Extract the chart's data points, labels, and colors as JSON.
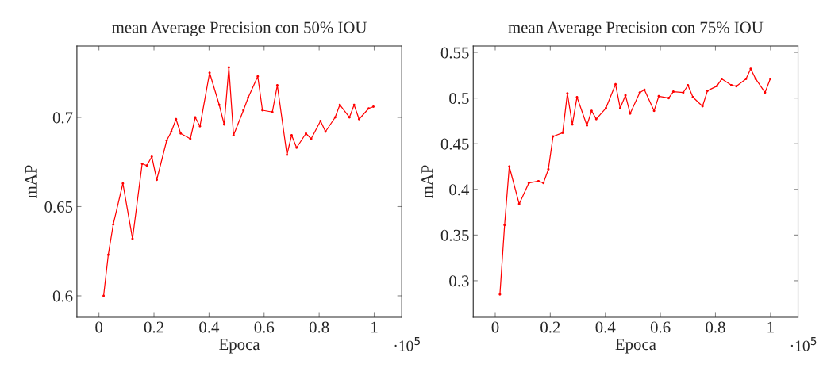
{
  "chart_data": [
    {
      "type": "line",
      "title": "mean Average Precision con 50% IOU",
      "xlabel": "Epoca",
      "ylabel": "mAP",
      "annotations": [
        "·10$^{5}$"
      ],
      "x": [
        0.017,
        0.034,
        0.052,
        0.087,
        0.122,
        0.157,
        0.174,
        0.192,
        0.21,
        0.246,
        0.263,
        0.28,
        0.297,
        0.332,
        0.35,
        0.367,
        0.402,
        0.437,
        0.455,
        0.472,
        0.489,
        0.525,
        0.542,
        0.577,
        0.594,
        0.63,
        0.648,
        0.683,
        0.7,
        0.718,
        0.752,
        0.771,
        0.805,
        0.823,
        0.858,
        0.875,
        0.91,
        0.927,
        0.945,
        0.98,
        0.997
      ],
      "series": [
        {
          "color": "#ff0000",
          "values": [
            0.6,
            0.623,
            0.64,
            0.663,
            0.632,
            0.674,
            0.673,
            0.678,
            0.665,
            0.687,
            0.692,
            0.699,
            0.691,
            0.688,
            0.7,
            0.695,
            0.725,
            0.707,
            0.696,
            0.728,
            0.69,
            0.704,
            0.711,
            0.723,
            0.704,
            0.703,
            0.718,
            0.679,
            0.69,
            0.683,
            0.691,
            0.688,
            0.698,
            0.692,
            0.7,
            0.707,
            0.7,
            0.707,
            0.699,
            0.705,
            0.706
          ]
        }
      ],
      "xlim": [
        -0.08,
        1.1
      ],
      "ylim": [
        0.588,
        0.74
      ],
      "xticks": [
        0,
        0.2,
        0.4,
        0.6,
        0.8,
        1
      ],
      "yticks": [
        0.6,
        0.65,
        0.7
      ],
      "marker": "circle",
      "line_style": "solid",
      "grid": false,
      "legend": false
    },
    {
      "type": "line",
      "title": "mean Average Precision con 75% IOU",
      "xlabel": "Epoca",
      "ylabel": "mAP",
      "annotations": [
        "·10$^{5}$"
      ],
      "x": [
        0.017,
        0.034,
        0.051,
        0.087,
        0.122,
        0.157,
        0.175,
        0.193,
        0.21,
        0.245,
        0.262,
        0.28,
        0.297,
        0.333,
        0.35,
        0.367,
        0.402,
        0.437,
        0.454,
        0.473,
        0.49,
        0.525,
        0.542,
        0.577,
        0.594,
        0.63,
        0.647,
        0.683,
        0.7,
        0.718,
        0.753,
        0.771,
        0.805,
        0.823,
        0.858,
        0.876,
        0.911,
        0.928,
        0.946,
        0.98,
        0.999
      ],
      "series": [
        {
          "color": "#ff0000",
          "values": [
            0.285,
            0.361,
            0.425,
            0.384,
            0.407,
            0.409,
            0.407,
            0.422,
            0.458,
            0.462,
            0.505,
            0.471,
            0.501,
            0.47,
            0.486,
            0.477,
            0.489,
            0.515,
            0.489,
            0.503,
            0.483,
            0.506,
            0.509,
            0.486,
            0.502,
            0.5,
            0.507,
            0.506,
            0.514,
            0.501,
            0.491,
            0.508,
            0.513,
            0.521,
            0.514,
            0.513,
            0.521,
            0.532,
            0.521,
            0.506,
            0.521
          ]
        }
      ],
      "xlim": [
        -0.08,
        1.1
      ],
      "ylim": [
        0.26,
        0.557
      ],
      "xticks": [
        0,
        0.2,
        0.4,
        0.6,
        0.8,
        1
      ],
      "yticks": [
        0.3,
        0.35,
        0.4,
        0.45,
        0.5,
        0.55
      ],
      "marker": "circle",
      "line_style": "solid",
      "grid": false,
      "legend": false
    }
  ]
}
